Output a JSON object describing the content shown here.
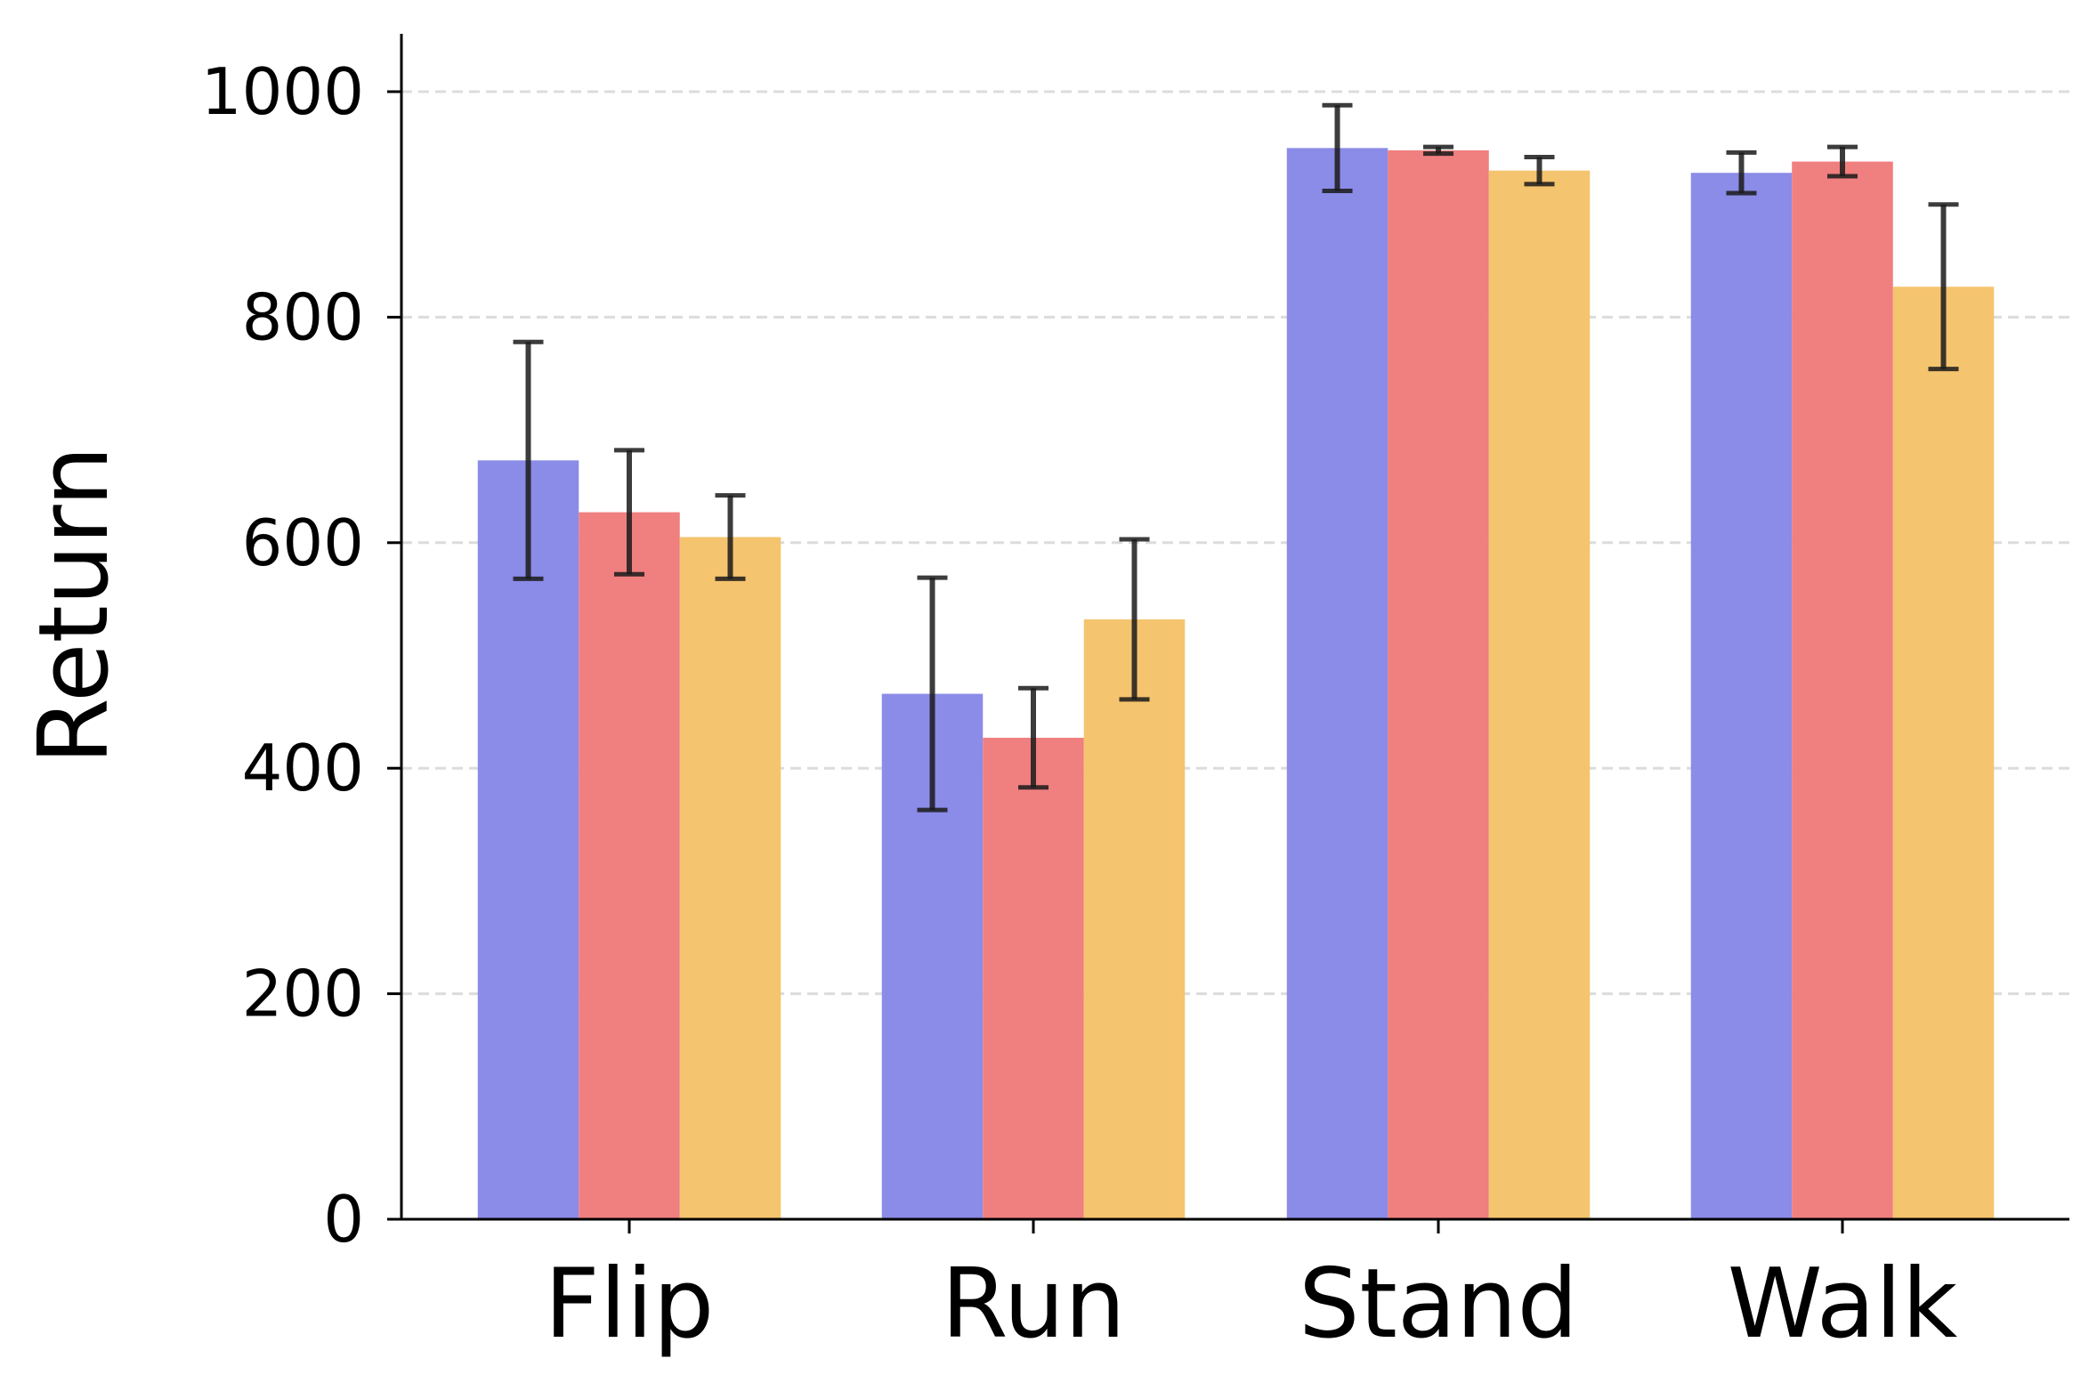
{
  "chart_data": {
    "type": "bar",
    "title": "",
    "xlabel": "",
    "ylabel": "Return",
    "ylim": [
      0,
      1050
    ],
    "yticks": [
      0,
      200,
      400,
      600,
      800,
      1000
    ],
    "grid": "y-dashed",
    "legend": "none",
    "categories": [
      "Flip",
      "Run",
      "Stand",
      "Walk"
    ],
    "series": [
      {
        "color": "#8b8be8",
        "values": [
          673,
          466,
          950,
          928
        ],
        "errors": [
          105,
          103,
          38,
          18
        ]
      },
      {
        "color": "#f07f7f",
        "values": [
          627,
          427,
          948,
          938
        ],
        "errors": [
          55,
          44,
          3,
          13
        ]
      },
      {
        "color": "#f5c46e",
        "values": [
          605,
          532,
          930,
          827
        ],
        "errors": [
          37,
          71,
          12,
          73
        ]
      }
    ],
    "error_bar_color": "#1a1a1a"
  }
}
